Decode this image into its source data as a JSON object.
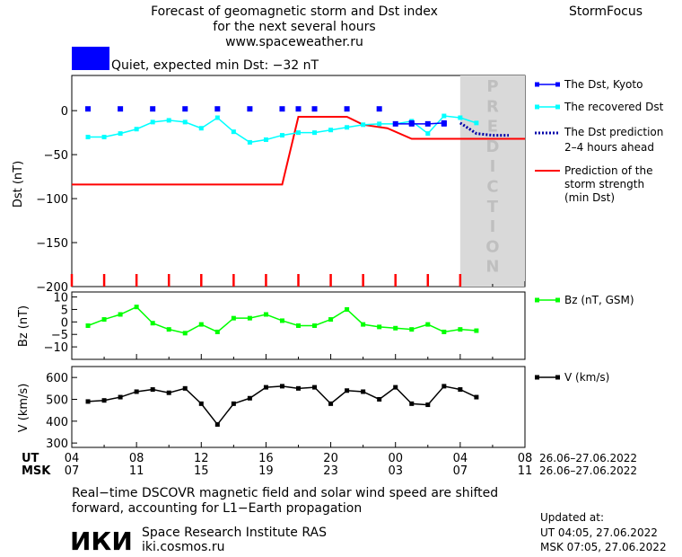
{
  "header": {
    "title_line1": "Forecast of geomagnetic storm and Dst index",
    "title_line2": "for the next several hours",
    "website": "www.spaceweather.ru",
    "app_name": "StormFocus",
    "status_text": "Quiet, expected min Dst: −32 nT",
    "status_color": "#0000ff"
  },
  "legend": {
    "dst_kyoto": "The Dst, Kyoto",
    "recovered_dst": "The recovered Dst",
    "dst_prediction_line1": "The Dst prediction",
    "dst_prediction_line2": "2–4 hours ahead",
    "storm_strength_line1": "Prediction of the",
    "storm_strength_line2": "storm strength",
    "storm_strength_line3": "(min Dst)",
    "bz": "Bz (nT, GSM)",
    "v": "V (km/s)"
  },
  "prediction_label": "PREDICTION",
  "time_axis": {
    "ut_label": "UT",
    "msk_label": "MSK",
    "ut_ticks": [
      "04",
      "08",
      "12",
      "16",
      "20",
      "00",
      "04",
      "08"
    ],
    "msk_ticks": [
      "07",
      "11",
      "15",
      "19",
      "23",
      "03",
      "07",
      "11"
    ],
    "ut_date_range": "26.06–27.06.2022",
    "msk_date_range": "26.06–27.06.2022"
  },
  "footer": {
    "note_line1": "Real−time DSCOVR magnetic field and solar wind speed are shifted",
    "note_line2": "forward, accounting for L1−Earth propagation",
    "institute_logo": "ИКИ",
    "institute_name": "Space Research Institute RAS",
    "institute_site": "iki.cosmos.ru",
    "updated_label": "Updated at:",
    "updated_ut": "UT   04:05, 27.06.2022",
    "updated_msk": "MSK 07:05, 27.06.2022"
  },
  "chart_data": [
    {
      "type": "line",
      "ylabel": "Dst (nT)",
      "ylim": [
        -200,
        40
      ],
      "xlim": [
        0,
        28
      ],
      "x_unit": "hours since 04 UT 26.06.2022",
      "yticks": [
        0,
        -50,
        -100,
        -150,
        -200
      ],
      "prediction_region": [
        24,
        28
      ],
      "colors": {
        "kyoto": "#0000ff",
        "recovered": "#00ffff",
        "prediction": "#0000aa",
        "storm": "#ff0000"
      },
      "series": [
        {
          "name": "The Dst, Kyoto",
          "x": [
            1,
            3,
            5,
            7,
            9,
            11,
            13,
            14,
            15,
            17,
            19,
            21,
            23
          ],
          "y": [
            2,
            2,
            2,
            2,
            2,
            2,
            2,
            2,
            2,
            2,
            2,
            -14,
            -15
          ]
        },
        {
          "name": "The Dst, Kyoto (recent)",
          "x": [
            20,
            21,
            22,
            23
          ],
          "y": [
            -15,
            -15,
            -15,
            -14
          ]
        },
        {
          "name": "The recovered Dst",
          "x": [
            1,
            2,
            3,
            4,
            5,
            6,
            7,
            8,
            9,
            10,
            11,
            12,
            13,
            14,
            15,
            16,
            17,
            18,
            19,
            20,
            21,
            22,
            23,
            24,
            25
          ],
          "y": [
            -30,
            -30,
            -26,
            -21,
            -13,
            -11,
            -13,
            -20,
            -8,
            -24,
            -36,
            -33,
            -28,
            -25,
            -25,
            -22,
            -19,
            -16,
            -15,
            -15,
            -12,
            -26,
            -6,
            -8,
            -14
          ]
        },
        {
          "name": "The Dst prediction",
          "x": [
            24,
            25,
            26,
            27
          ],
          "y": [
            -14,
            -26,
            -28,
            -28
          ]
        },
        {
          "name": "Prediction of the storm strength",
          "x": [
            0,
            13,
            14,
            17,
            18,
            19.5,
            21,
            28
          ],
          "y": [
            -84,
            -84,
            -7,
            -7,
            -16,
            -20,
            -32,
            -32
          ]
        }
      ]
    },
    {
      "type": "line",
      "ylabel": "Bz (nT)",
      "ylim": [
        -15,
        12
      ],
      "xlim": [
        0,
        28
      ],
      "yticks": [
        10,
        5,
        0,
        -5,
        -10
      ],
      "series": [
        {
          "name": "Bz (nT, GSM)",
          "color": "#00ff00",
          "x": [
            1,
            2,
            3,
            4,
            5,
            6,
            7,
            8,
            9,
            10,
            11,
            12,
            13,
            14,
            15,
            16,
            17,
            18,
            19,
            20,
            21,
            22,
            23,
            24,
            25
          ],
          "y": [
            -1.5,
            1,
            3,
            6,
            -0.5,
            -3,
            -4.5,
            -1,
            -4,
            1.5,
            1.5,
            3,
            0.5,
            -1.5,
            -1.5,
            1,
            5,
            -1,
            -2,
            -2.5,
            -3,
            -1,
            -4,
            -3,
            -3.5
          ]
        }
      ]
    },
    {
      "type": "line",
      "ylabel": "V (km/s)",
      "ylim": [
        280,
        650
      ],
      "xlim": [
        0,
        28
      ],
      "yticks": [
        600,
        500,
        400,
        300
      ],
      "series": [
        {
          "name": "V (km/s)",
          "color": "#000000",
          "x": [
            1,
            2,
            3,
            4,
            5,
            6,
            7,
            8,
            9,
            10,
            11,
            12,
            13,
            14,
            15,
            16,
            17,
            18,
            19,
            20,
            21,
            22,
            23,
            24,
            25
          ],
          "y": [
            490,
            495,
            510,
            535,
            545,
            530,
            550,
            480,
            385,
            480,
            505,
            555,
            560,
            550,
            555,
            480,
            540,
            535,
            500,
            555,
            480,
            475,
            560,
            545,
            510
          ]
        }
      ]
    }
  ]
}
